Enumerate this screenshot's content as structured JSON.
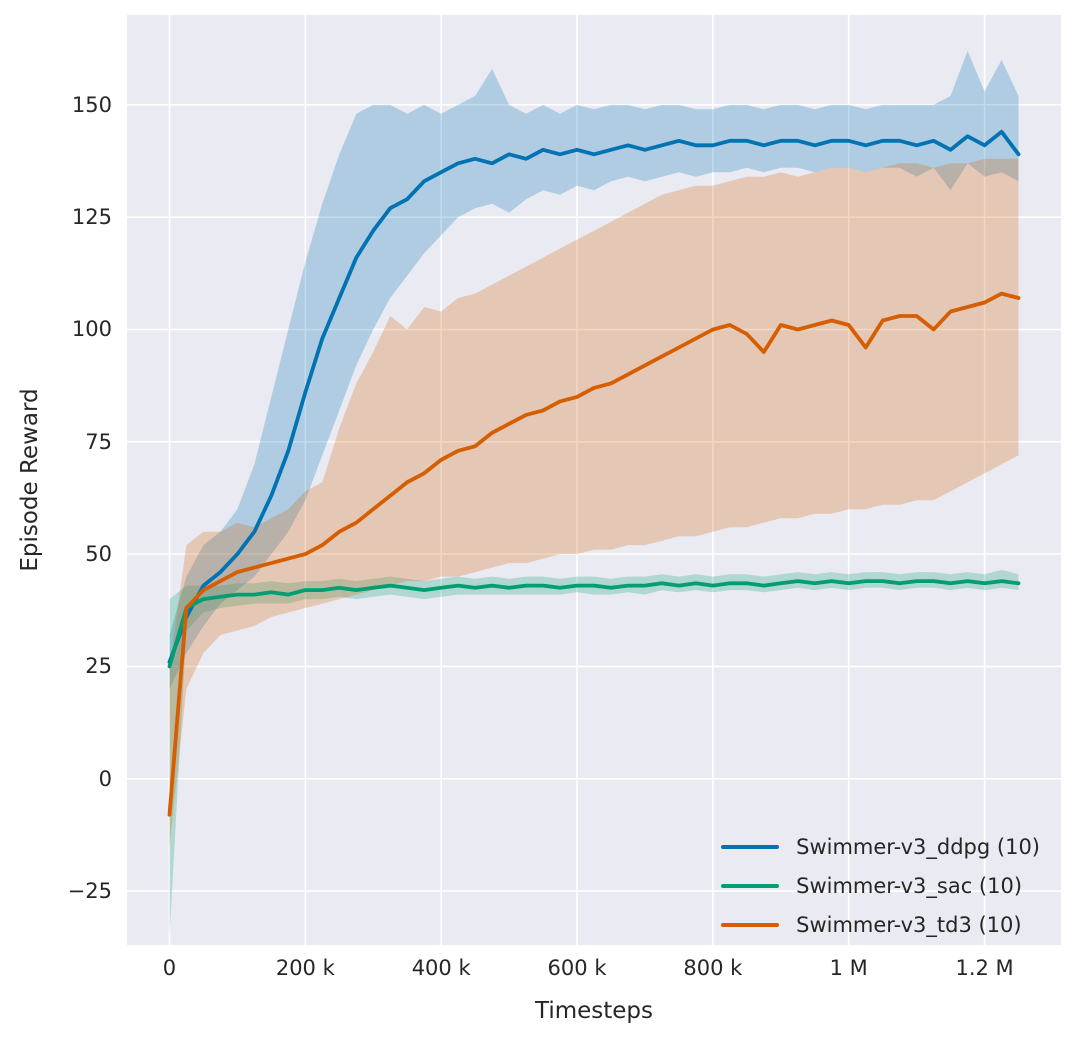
{
  "axes": {
    "xlabel": "Timesteps",
    "ylabel": "Episode Reward"
  },
  "colors": {
    "figure_bg": "#ffffff",
    "plot_bg": "#eaeaf2",
    "grid": "#ffffff",
    "text": "#262626"
  },
  "chart_data": {
    "type": "line",
    "title": "",
    "xlabel": "Timesteps",
    "ylabel": "Episode Reward",
    "grid": true,
    "legend_position": "lower right",
    "x_unit": "thousand timesteps",
    "xlim": [
      -62.5,
      1312.5
    ],
    "ylim": [
      -37,
      170
    ],
    "xticks": {
      "values": [
        0,
        200,
        400,
        600,
        800,
        1000,
        1200
      ],
      "labels": [
        "0",
        "200 k",
        "400 k",
        "600 k",
        "800 k",
        "1 M",
        "1.2 M"
      ]
    },
    "yticks": {
      "values": [
        -25,
        0,
        25,
        50,
        75,
        100,
        125,
        150
      ],
      "labels": [
        "−25",
        "0",
        "25",
        "50",
        "75",
        "100",
        "125",
        "150"
      ]
    },
    "x_thousands": [
      0,
      25,
      50,
      75,
      100,
      125,
      150,
      175,
      200,
      225,
      250,
      275,
      300,
      325,
      350,
      375,
      400,
      425,
      450,
      475,
      500,
      525,
      550,
      575,
      600,
      625,
      650,
      675,
      700,
      725,
      750,
      775,
      800,
      825,
      850,
      875,
      900,
      925,
      950,
      975,
      1000,
      1025,
      1050,
      1075,
      1100,
      1125,
      1150,
      1175,
      1200,
      1225,
      1250
    ],
    "band_opacity": 0.25,
    "series": [
      {
        "id": "ddpg",
        "name": "Swimmer-v3_ddpg (10)",
        "color": "#0173b2",
        "mean": [
          26,
          36,
          43,
          46,
          50,
          55,
          63,
          73,
          86,
          98,
          107,
          116,
          122,
          127,
          129,
          133,
          135,
          137,
          138,
          137,
          139,
          138,
          140,
          139,
          140,
          139,
          140,
          141,
          140,
          141,
          142,
          141,
          141,
          142,
          142,
          141,
          142,
          142,
          141,
          142,
          142,
          141,
          142,
          142,
          141,
          142,
          140,
          143,
          141,
          144,
          139
        ],
        "low": [
          20,
          28,
          34,
          39,
          42,
          45,
          50,
          55,
          62,
          72,
          82,
          92,
          100,
          107,
          112,
          117,
          121,
          125,
          127,
          128,
          126,
          129,
          131,
          130,
          132,
          131,
          133,
          134,
          133,
          134,
          135,
          134,
          135,
          135,
          136,
          135,
          136,
          136,
          135,
          136,
          136,
          135,
          136,
          136,
          134,
          136,
          131,
          137,
          134,
          135,
          133
        ],
        "high": [
          32,
          45,
          52,
          55,
          60,
          70,
          85,
          100,
          115,
          128,
          139,
          148,
          150,
          150,
          148,
          150,
          148,
          150,
          152,
          158,
          150,
          148,
          150,
          148,
          150,
          149,
          150,
          150,
          149,
          150,
          150,
          149,
          149,
          150,
          150,
          149,
          150,
          150,
          149,
          150,
          150,
          149,
          150,
          150,
          150,
          150,
          152,
          162,
          153,
          160,
          152
        ]
      },
      {
        "id": "sac",
        "name": "Swimmer-v3_sac (10)",
        "color": "#029e73",
        "mean": [
          25,
          38,
          40,
          40.5,
          41,
          41,
          41.5,
          41,
          42,
          42,
          42.5,
          42,
          42.5,
          43,
          42.5,
          42,
          42.5,
          43,
          42.5,
          43,
          42.5,
          43,
          43,
          42.5,
          43,
          43,
          42.5,
          43,
          43,
          43.5,
          43,
          43.5,
          43,
          43.5,
          43.5,
          43,
          43.5,
          44,
          43.5,
          44,
          43.5,
          44,
          44,
          43.5,
          44,
          44,
          43.5,
          44,
          43.5,
          44,
          43.5
        ],
        "low": [
          -35,
          33,
          37,
          38,
          38.5,
          39,
          39,
          39,
          40,
          40,
          40.5,
          40,
          40.5,
          41,
          40.5,
          40,
          40.5,
          41,
          41,
          41,
          41,
          41,
          41,
          41,
          41.5,
          41,
          41,
          41.5,
          41,
          42,
          41.5,
          42,
          41.5,
          42,
          42,
          41.5,
          42,
          42.5,
          42,
          42.5,
          42,
          42.5,
          42.5,
          42,
          42.5,
          42.5,
          42,
          42.5,
          42,
          42.5,
          42
        ],
        "high": [
          40,
          43,
          43,
          43,
          43.5,
          43.5,
          44,
          43.5,
          44,
          44,
          44.5,
          44,
          44.5,
          45,
          44.5,
          44,
          44.5,
          45,
          44.5,
          45,
          44.5,
          45,
          45,
          44.5,
          45,
          45,
          44.5,
          45,
          45,
          45.5,
          45,
          45.5,
          45,
          45.5,
          45.5,
          45,
          45.5,
          46,
          45.5,
          46,
          45.5,
          46,
          46,
          45.5,
          46,
          46,
          45.5,
          46,
          45.5,
          46.5,
          45.5
        ]
      },
      {
        "id": "td3",
        "name": "Swimmer-v3_td3 (10)",
        "color": "#d55e00",
        "mean": [
          -8,
          38,
          42,
          44,
          46,
          47,
          48,
          49,
          50,
          52,
          55,
          57,
          60,
          63,
          66,
          68,
          71,
          73,
          74,
          77,
          79,
          81,
          82,
          84,
          85,
          87,
          88,
          90,
          92,
          94,
          96,
          98,
          100,
          101,
          99,
          95,
          101,
          100,
          101,
          102,
          101,
          96,
          102,
          103,
          103,
          100,
          104,
          105,
          106,
          108,
          107
        ],
        "low": [
          -15,
          20,
          28,
          32,
          33,
          34,
          36,
          37,
          38,
          39,
          40,
          41,
          42,
          43,
          44,
          44,
          45,
          45,
          46,
          47,
          48,
          48,
          49,
          50,
          50,
          51,
          51,
          52,
          52,
          53,
          54,
          54,
          55,
          56,
          56,
          57,
          58,
          58,
          59,
          59,
          60,
          60,
          61,
          61,
          62,
          62,
          64,
          66,
          68,
          70,
          72
        ],
        "high": [
          25,
          52,
          55,
          55,
          57,
          56,
          58,
          60,
          64,
          66,
          78,
          88,
          95,
          103,
          100,
          105,
          104,
          107,
          108,
          110,
          112,
          114,
          116,
          118,
          120,
          122,
          124,
          126,
          128,
          130,
          131,
          132,
          132,
          133,
          134,
          134,
          135,
          134,
          135,
          136,
          136,
          135,
          136,
          137,
          137,
          136,
          137,
          137,
          138,
          138,
          138
        ]
      }
    ]
  }
}
